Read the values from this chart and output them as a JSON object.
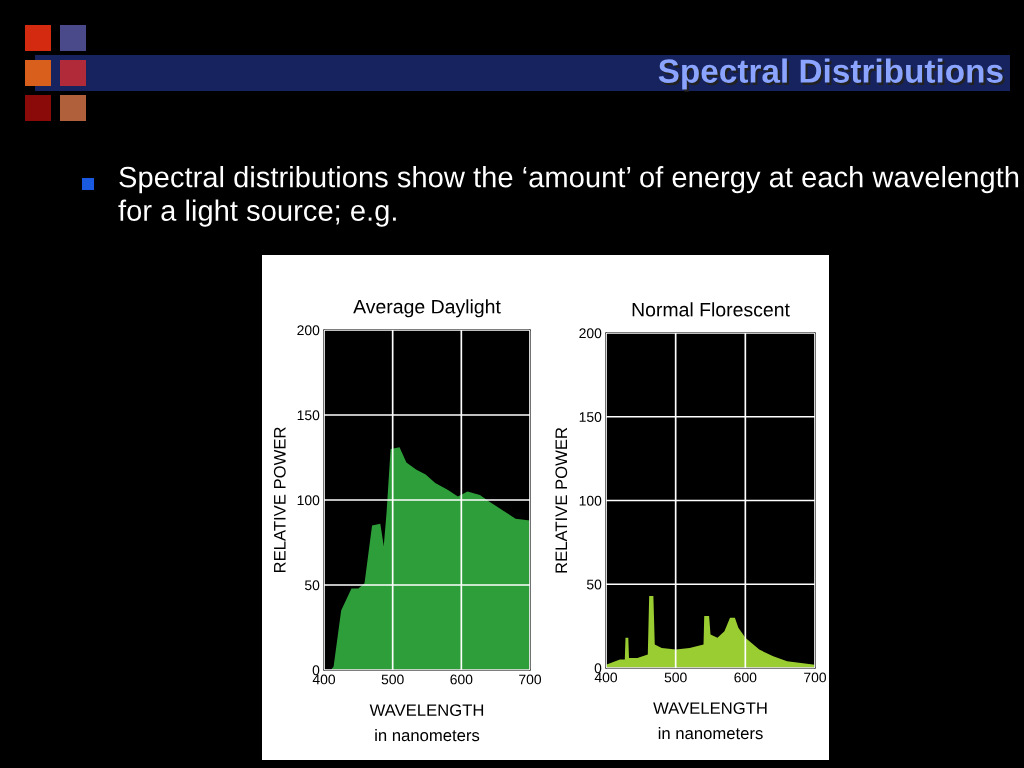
{
  "chart_data": [
    {
      "type": "area",
      "title": "Average Daylight",
      "color": "#2e9e3a",
      "xlabel": "WAVELENGTH\nin nanometers",
      "ylabel": "RELATIVE POWER",
      "annotations": [
        "Spectral Distributions",
        "Spectral distributions show the ‘amount’ of energy at each wavelength for a light source; e.g."
      ],
      "x": [
        400,
        410,
        414,
        425,
        440,
        450,
        459,
        470,
        482,
        487,
        491,
        497,
        510,
        520,
        534,
        548,
        562,
        580,
        595,
        609,
        627,
        641,
        660,
        679,
        700
      ],
      "values": [
        0,
        0,
        2,
        35,
        48,
        48,
        51,
        85,
        86,
        73,
        92,
        130,
        131,
        122,
        118,
        115,
        110,
        106,
        102,
        105,
        103,
        99,
        94,
        89,
        88
      ],
      "xlim": [
        400,
        700
      ],
      "ylim": [
        0,
        200
      ],
      "xticks": [
        400,
        500,
        600,
        700
      ],
      "yticks": [
        0,
        50,
        100,
        150,
        200
      ],
      "grid": true
    },
    {
      "type": "area",
      "title": "Normal Florescent",
      "color": "#9acd32",
      "xlabel": "WAVELENGTH\nin nanometers",
      "ylabel": "RELATIVE POWER",
      "x": [
        400,
        420,
        427,
        428,
        432,
        433,
        445,
        460,
        462,
        468,
        470,
        480,
        500,
        520,
        540,
        541,
        548,
        550,
        560,
        570,
        578,
        585,
        590,
        600,
        620,
        640,
        660,
        680,
        700
      ],
      "values": [
        2,
        5,
        5,
        18,
        18,
        6,
        6,
        8,
        43,
        43,
        14,
        12,
        11,
        12,
        14,
        31,
        31,
        20,
        18,
        22,
        30,
        30,
        24,
        18,
        11,
        7,
        4,
        3,
        2
      ],
      "xlim": [
        400,
        700
      ],
      "ylim": [
        0,
        200
      ],
      "xticks": [
        400,
        500,
        600,
        700
      ],
      "yticks": [
        0,
        50,
        100,
        150,
        200
      ],
      "grid": true
    }
  ]
}
